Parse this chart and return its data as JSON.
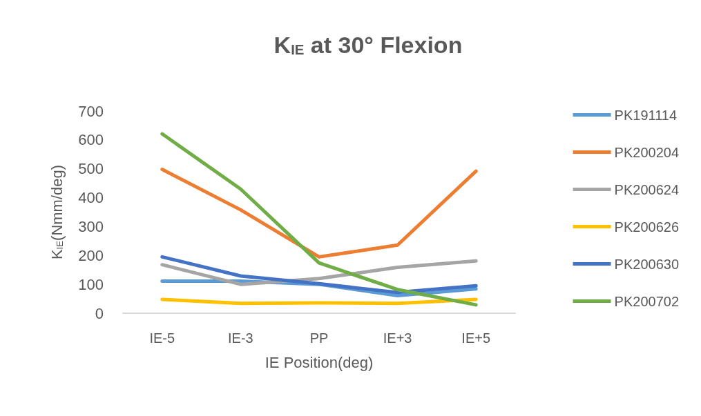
{
  "chart_data": {
    "type": "line",
    "title": "K$_{IE}$ at 30° Flexion",
    "xlabel": "IE Position(deg)",
    "ylabel": "K$_{IE}$(Nmm/deg)",
    "categories": [
      "IE-5",
      "IE-3",
      "PP",
      "IE+3",
      "IE+5"
    ],
    "series": [
      {
        "name": "PK191114",
        "color": "#5b9bd5",
        "values": [
          111,
          111,
          100,
          61,
          84
        ]
      },
      {
        "name": "PK200204",
        "color": "#ed7d31",
        "values": [
          498,
          358,
          195,
          236,
          492
        ]
      },
      {
        "name": "PK200624",
        "color": "#a5a5a5",
        "values": [
          168,
          100,
          120,
          159,
          181
        ]
      },
      {
        "name": "PK200626",
        "color": "#ffc000",
        "values": [
          48,
          34,
          36,
          34,
          48
        ]
      },
      {
        "name": "PK200630",
        "color": "#4472c4",
        "values": [
          195,
          129,
          102,
          72,
          95
        ]
      },
      {
        "name": "PK200702",
        "color": "#70ad47",
        "values": [
          621,
          430,
          174,
          82,
          29
        ]
      }
    ],
    "ylim": [
      0,
      700
    ],
    "yticks": [
      0,
      100,
      200,
      300,
      400,
      500,
      600,
      700
    ],
    "grid": false,
    "legend": "right",
    "marker": "none",
    "line_style": "solid"
  }
}
